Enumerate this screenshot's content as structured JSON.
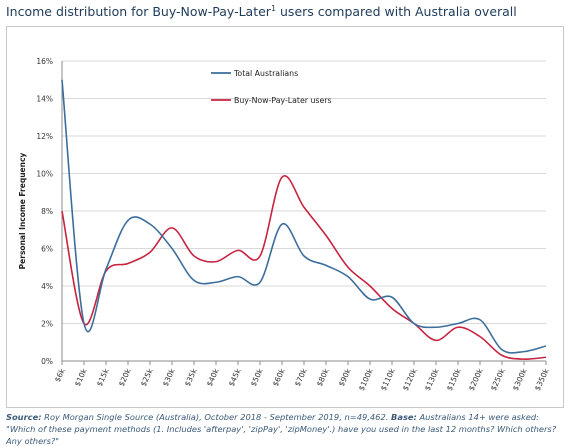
{
  "title": {
    "text": "Income distribution for Buy-Now-Pay-Later",
    "sup": "1",
    "rest": " users compared with Australia overall"
  },
  "source": {
    "label1": "Source:",
    "text1": " Roy Morgan Single Source (Australia), October 2018 - September 2019, n=49,462. ",
    "label2": "Base:",
    "text2": " Australians 14+ were asked: \"Which of these payment methods (1. Includes 'afterpay', 'zipPay', 'zipMoney'.) have you used in the last 12 months? Which others? Any others?\""
  },
  "colors": {
    "total": "#3c6e9b",
    "bnpl": "#c8233f",
    "grid": "#d9d9d9",
    "axis": "#8c8c8c"
  },
  "chart_data": {
    "type": "line",
    "title": "Income distribution for Buy-Now-Pay-Later users compared with Australia overall",
    "xlabel": "",
    "ylabel": "Personal Income Frequency",
    "ylim": [
      0,
      16
    ],
    "yticks": [
      "0%",
      "2%",
      "4%",
      "6%",
      "8%",
      "10%",
      "12%",
      "14%",
      "16%"
    ],
    "grid": true,
    "legend": "top-center",
    "categories": [
      "$6k",
      "$10k",
      "$15k",
      "$20k",
      "$25k",
      "$30k",
      "$35k",
      "$40k",
      "$45k",
      "$50k",
      "$60k",
      "$70k",
      "$80k",
      "$90k",
      "$100k",
      "$110k",
      "$120k",
      "$130k",
      "$150k",
      "$200k",
      "$250k",
      "$300k",
      "$350k"
    ],
    "series": [
      {
        "name": "Total Australians",
        "color": "#3c6e9b",
        "values": [
          15.0,
          2.0,
          4.9,
          7.5,
          7.3,
          6.0,
          4.3,
          4.2,
          4.5,
          4.2,
          7.3,
          5.6,
          5.1,
          4.5,
          3.3,
          3.4,
          2.0,
          1.8,
          2.0,
          2.2,
          0.6,
          0.5,
          0.8
        ]
      },
      {
        "name": "Buy-Now-Pay-Later users",
        "color": "#c8233f",
        "values": [
          8.0,
          2.0,
          4.8,
          5.2,
          5.8,
          7.1,
          5.6,
          5.3,
          5.9,
          5.6,
          9.8,
          8.2,
          6.7,
          5.0,
          4.0,
          2.8,
          2.0,
          1.1,
          1.8,
          1.3,
          0.3,
          0.1,
          0.2
        ]
      }
    ]
  }
}
